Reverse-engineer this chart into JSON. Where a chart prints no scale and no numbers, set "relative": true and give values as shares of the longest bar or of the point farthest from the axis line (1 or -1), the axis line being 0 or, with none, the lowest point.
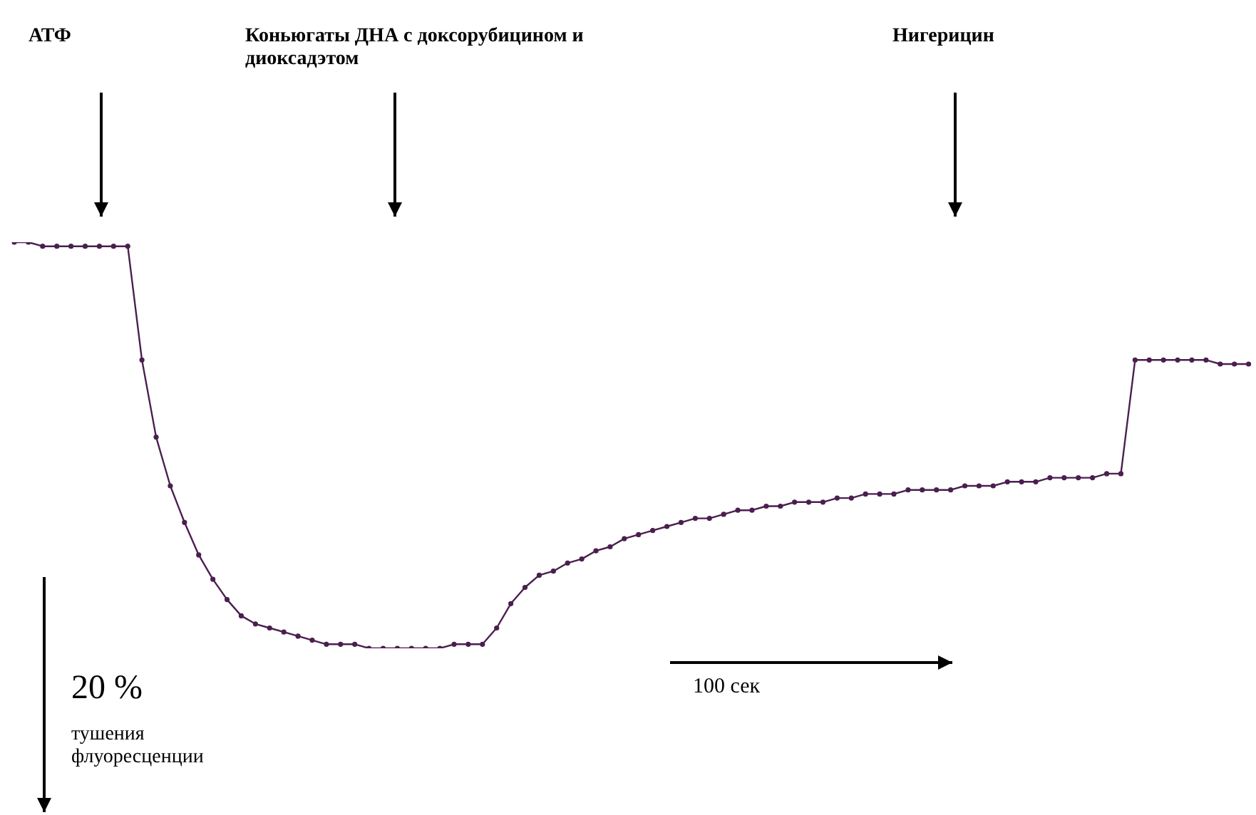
{
  "chart_data": {
    "type": "line",
    "relative": true,
    "marker": "circle",
    "color": "#4b1f4f",
    "categories": [
      null,
      null,
      null,
      null,
      null,
      null,
      null,
      null,
      null,
      null,
      null,
      null,
      null,
      null,
      null,
      null,
      null,
      null,
      null,
      null,
      null,
      null,
      null,
      null,
      null,
      null,
      null,
      null,
      null,
      null,
      null,
      null,
      null,
      null,
      null,
      null,
      null,
      null,
      null,
      null,
      null,
      null,
      null,
      null,
      null,
      null,
      null,
      null,
      null,
      null,
      null,
      null,
      null,
      null,
      null,
      null,
      null,
      null,
      null,
      null,
      null,
      null,
      null,
      null,
      null,
      null,
      null,
      null,
      null,
      null,
      null,
      null,
      null,
      null,
      null,
      null,
      null,
      null,
      null,
      null,
      null,
      null,
      null,
      null,
      null,
      null,
      null,
      null
    ],
    "values": [
      1.0,
      1.0,
      0.99,
      0.99,
      0.99,
      0.99,
      0.99,
      0.99,
      0.99,
      0.71,
      0.52,
      0.4,
      0.31,
      0.23,
      0.17,
      0.12,
      0.08,
      0.06,
      0.05,
      0.04,
      0.03,
      0.02,
      0.01,
      0.01,
      0.01,
      0.0,
      0.0,
      0.0,
      0.0,
      0.0,
      0.0,
      0.01,
      0.01,
      0.01,
      0.05,
      0.11,
      0.15,
      0.18,
      0.19,
      0.21,
      0.22,
      0.24,
      0.25,
      0.27,
      0.28,
      0.29,
      0.3,
      0.31,
      0.32,
      0.32,
      0.33,
      0.34,
      0.34,
      0.35,
      0.35,
      0.36,
      0.36,
      0.36,
      0.37,
      0.37,
      0.38,
      0.38,
      0.38,
      0.39,
      0.39,
      0.39,
      0.39,
      0.4,
      0.4,
      0.4,
      0.41,
      0.41,
      0.41,
      0.42,
      0.42,
      0.42,
      0.42,
      0.43,
      0.43,
      0.71,
      0.71,
      0.71,
      0.71,
      0.71,
      0.71,
      0.7,
      0.7,
      0.7
    ],
    "annotations": [
      "АТФ",
      "Коньюгаты ДНА с доксорубицином и диоксадэтом",
      "Нигерицин",
      "20 %",
      "тушения флуоресценции",
      "100 сек"
    ]
  }
}
